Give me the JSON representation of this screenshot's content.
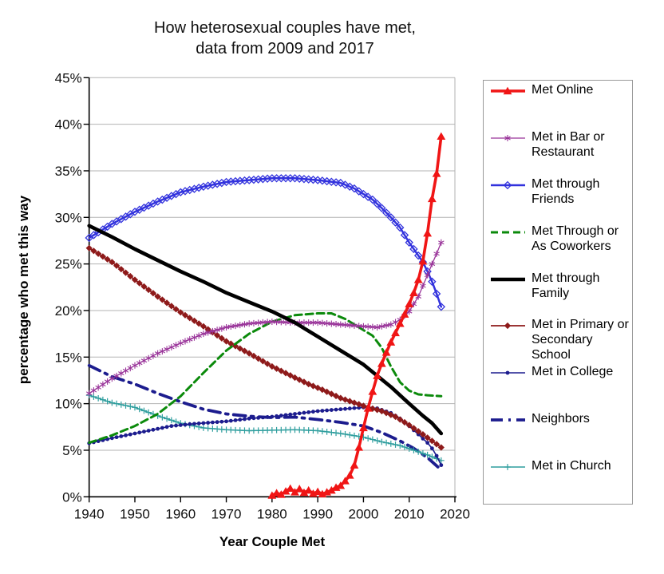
{
  "title": {
    "line1": "How heterosexual couples have met,",
    "line2": "data from 2009 and 2017"
  },
  "chart_data": {
    "type": "line",
    "title": "How heterosexual couples have met, data from 2009 and 2017",
    "xlabel": "Year Couple Met",
    "ylabel": "percentage who met this way",
    "xlim": [
      1940,
      2020
    ],
    "ylim": [
      0,
      45
    ],
    "grid": "horizontal",
    "legend_position": "right",
    "x_tick_labels": [
      "1940",
      "1950",
      "1960",
      "1970",
      "1980",
      "1990",
      "2000",
      "2010",
      "2020"
    ],
    "x_tick_values": [
      1940,
      1950,
      1960,
      1970,
      1980,
      1990,
      2000,
      2010,
      2020
    ],
    "y_tick_labels": [
      "0%",
      "5%",
      "10%",
      "15%",
      "20%",
      "25%",
      "30%",
      "35%",
      "40%",
      "45%"
    ],
    "y_tick_values": [
      0,
      5,
      10,
      15,
      20,
      25,
      30,
      35,
      40,
      45
    ],
    "colors": {
      "grid": "#b3b3b3",
      "axis": "#000000",
      "legend_border": "#999999"
    },
    "series": [
      {
        "name": "Met Online",
        "color": "#f01515",
        "marker": "triangle",
        "line_width": 3.6,
        "dash": null,
        "points": [
          [
            1980,
            0.15
          ],
          [
            1981,
            0.4
          ],
          [
            1982,
            0.25
          ],
          [
            1983,
            0.6
          ],
          [
            1984,
            0.9
          ],
          [
            1985,
            0.5
          ],
          [
            1986,
            0.85
          ],
          [
            1987,
            0.45
          ],
          [
            1988,
            0.7
          ],
          [
            1989,
            0.35
          ],
          [
            1990,
            0.55
          ],
          [
            1991,
            0.3
          ],
          [
            1992,
            0.5
          ],
          [
            1993,
            0.7
          ],
          [
            1994,
            1.0
          ],
          [
            1995,
            1.2
          ],
          [
            1996,
            1.7
          ],
          [
            1997,
            2.3
          ],
          [
            1998,
            3.4
          ],
          [
            1999,
            5.3
          ],
          [
            2000,
            7.4
          ],
          [
            2001,
            9.5
          ],
          [
            2002,
            11.3
          ],
          [
            2003,
            13.0
          ],
          [
            2004,
            14.3
          ],
          [
            2005,
            15.5
          ],
          [
            2006,
            16.6
          ],
          [
            2007,
            17.6
          ],
          [
            2008,
            18.6
          ],
          [
            2009,
            19.6
          ],
          [
            2010,
            20.7
          ],
          [
            2011,
            21.9
          ],
          [
            2012,
            23.3
          ],
          [
            2013,
            25.3
          ],
          [
            2014,
            28.3
          ],
          [
            2015,
            32.0
          ],
          [
            2016,
            34.7
          ],
          [
            2017,
            38.7
          ]
        ]
      },
      {
        "name": "Met in Bar or Restaurant",
        "color": "#993399",
        "marker": "star",
        "line_width": 1.3,
        "dash": null,
        "points": [
          [
            1940,
            11.1
          ],
          [
            1945,
            12.7
          ],
          [
            1950,
            14.1
          ],
          [
            1955,
            15.4
          ],
          [
            1960,
            16.5
          ],
          [
            1965,
            17.5
          ],
          [
            1970,
            18.2
          ],
          [
            1975,
            18.6
          ],
          [
            1980,
            18.8
          ],
          [
            1985,
            18.7
          ],
          [
            1990,
            18.7
          ],
          [
            1995,
            18.5
          ],
          [
            2000,
            18.3
          ],
          [
            2003,
            18.2
          ],
          [
            2006,
            18.5
          ],
          [
            2008,
            19.0
          ],
          [
            2010,
            19.9
          ],
          [
            2012,
            21.5
          ],
          [
            2014,
            23.8
          ],
          [
            2015,
            25.0
          ],
          [
            2016,
            26.1
          ],
          [
            2017,
            27.3
          ]
        ]
      },
      {
        "name": "Met through Friends",
        "color": "#3232dd",
        "marker": "open-diamond",
        "line_width": 2.5,
        "dash": null,
        "points": [
          [
            1940,
            27.8
          ],
          [
            1945,
            29.3
          ],
          [
            1950,
            30.6
          ],
          [
            1955,
            31.7
          ],
          [
            1960,
            32.7
          ],
          [
            1965,
            33.3
          ],
          [
            1970,
            33.8
          ],
          [
            1975,
            34.0
          ],
          [
            1980,
            34.2
          ],
          [
            1985,
            34.2
          ],
          [
            1990,
            34.0
          ],
          [
            1995,
            33.7
          ],
          [
            1998,
            33.1
          ],
          [
            2000,
            32.5
          ],
          [
            2002,
            31.9
          ],
          [
            2004,
            31.0
          ],
          [
            2006,
            30.0
          ],
          [
            2008,
            28.9
          ],
          [
            2010,
            27.3
          ],
          [
            2012,
            25.9
          ],
          [
            2013,
            25.2
          ],
          [
            2014,
            24.2
          ],
          [
            2015,
            23.1
          ],
          [
            2016,
            21.8
          ],
          [
            2017,
            20.4
          ]
        ]
      },
      {
        "name": "Met Through or As Coworkers",
        "color": "#0b8a0b",
        "marker": "none",
        "line_width": 3.0,
        "dash": "9 5",
        "points": [
          [
            1940,
            5.8
          ],
          [
            1945,
            6.6
          ],
          [
            1950,
            7.6
          ],
          [
            1955,
            8.9
          ],
          [
            1960,
            10.8
          ],
          [
            1965,
            13.3
          ],
          [
            1970,
            15.7
          ],
          [
            1975,
            17.5
          ],
          [
            1980,
            18.8
          ],
          [
            1985,
            19.5
          ],
          [
            1990,
            19.7
          ],
          [
            1993,
            19.7
          ],
          [
            1996,
            19.1
          ],
          [
            2000,
            17.9
          ],
          [
            2002,
            17.3
          ],
          [
            2004,
            16.0
          ],
          [
            2006,
            14.0
          ],
          [
            2008,
            12.3
          ],
          [
            2010,
            11.4
          ],
          [
            2012,
            11.0
          ],
          [
            2014,
            10.9
          ],
          [
            2017,
            10.8
          ]
        ]
      },
      {
        "name": "Met through Family",
        "color": "#000000",
        "marker": "none",
        "line_width": 4.6,
        "dash": null,
        "points": [
          [
            1940,
            29.1
          ],
          [
            1945,
            27.9
          ],
          [
            1950,
            26.6
          ],
          [
            1955,
            25.4
          ],
          [
            1960,
            24.2
          ],
          [
            1965,
            23.1
          ],
          [
            1970,
            21.9
          ],
          [
            1975,
            20.9
          ],
          [
            1980,
            19.9
          ],
          [
            1985,
            18.7
          ],
          [
            1990,
            17.2
          ],
          [
            1995,
            15.7
          ],
          [
            2000,
            14.2
          ],
          [
            2003,
            13.0
          ],
          [
            2006,
            11.8
          ],
          [
            2010,
            10.0
          ],
          [
            2013,
            8.7
          ],
          [
            2015,
            7.9
          ],
          [
            2017,
            6.8
          ]
        ]
      },
      {
        "name": "Met in Primary or Secondary School",
        "color": "#8e1a1a",
        "marker": "diamond",
        "line_width": 1.8,
        "dash": null,
        "points": [
          [
            1940,
            26.7
          ],
          [
            1945,
            25.2
          ],
          [
            1950,
            23.3
          ],
          [
            1955,
            21.5
          ],
          [
            1960,
            19.8
          ],
          [
            1965,
            18.3
          ],
          [
            1970,
            16.7
          ],
          [
            1975,
            15.4
          ],
          [
            1980,
            14.0
          ],
          [
            1985,
            12.8
          ],
          [
            1988,
            12.1
          ],
          [
            1991,
            11.5
          ],
          [
            1995,
            10.6
          ],
          [
            1998,
            10.1
          ],
          [
            2001,
            9.6
          ],
          [
            2004,
            9.2
          ],
          [
            2007,
            8.6
          ],
          [
            2010,
            7.7
          ],
          [
            2013,
            6.7
          ],
          [
            2015,
            6.0
          ],
          [
            2017,
            5.3
          ]
        ]
      },
      {
        "name": "Met in College",
        "color": "#1c1c8e",
        "marker": "dot",
        "line_width": 1.6,
        "dash": null,
        "points": [
          [
            1940,
            5.75
          ],
          [
            1945,
            6.3
          ],
          [
            1950,
            6.8
          ],
          [
            1955,
            7.3
          ],
          [
            1958,
            7.6
          ],
          [
            1962,
            7.8
          ],
          [
            1970,
            8.1
          ],
          [
            1975,
            8.4
          ],
          [
            1980,
            8.6
          ],
          [
            1985,
            8.9
          ],
          [
            1990,
            9.2
          ],
          [
            1995,
            9.4
          ],
          [
            2000,
            9.6
          ],
          [
            2003,
            9.5
          ],
          [
            2006,
            9.0
          ],
          [
            2008,
            8.4
          ],
          [
            2010,
            7.6
          ],
          [
            2012,
            6.7
          ],
          [
            2014,
            5.8
          ],
          [
            2015,
            5.2
          ],
          [
            2016,
            4.4
          ],
          [
            2017,
            3.4
          ]
        ]
      },
      {
        "name": "Neighbors",
        "color": "#1c1c8e",
        "marker": "none",
        "line_width": 3.8,
        "dash": "15 7 3 7",
        "points": [
          [
            1940,
            14.1
          ],
          [
            1945,
            12.9
          ],
          [
            1950,
            12.1
          ],
          [
            1955,
            11.1
          ],
          [
            1960,
            10.2
          ],
          [
            1965,
            9.4
          ],
          [
            1970,
            8.9
          ],
          [
            1975,
            8.65
          ],
          [
            1980,
            8.5
          ],
          [
            1985,
            8.55
          ],
          [
            1990,
            8.3
          ],
          [
            1995,
            8.0
          ],
          [
            2000,
            7.6
          ],
          [
            2004,
            6.9
          ],
          [
            2008,
            6.0
          ],
          [
            2011,
            5.2
          ],
          [
            2014,
            4.2
          ],
          [
            2017,
            2.9
          ]
        ]
      },
      {
        "name": "Met in Church",
        "color": "#2f9e9e",
        "marker": "plus",
        "line_width": 1.4,
        "dash": null,
        "points": [
          [
            1940,
            10.9
          ],
          [
            1945,
            10.1
          ],
          [
            1950,
            9.6
          ],
          [
            1955,
            8.7
          ],
          [
            1960,
            7.9
          ],
          [
            1965,
            7.4
          ],
          [
            1970,
            7.2
          ],
          [
            1975,
            7.1
          ],
          [
            1980,
            7.15
          ],
          [
            1985,
            7.2
          ],
          [
            1990,
            7.1
          ],
          [
            1995,
            6.8
          ],
          [
            2000,
            6.4
          ],
          [
            2004,
            5.9
          ],
          [
            2008,
            5.5
          ],
          [
            2011,
            5.0
          ],
          [
            2014,
            4.5
          ],
          [
            2017,
            3.9
          ]
        ]
      }
    ]
  }
}
